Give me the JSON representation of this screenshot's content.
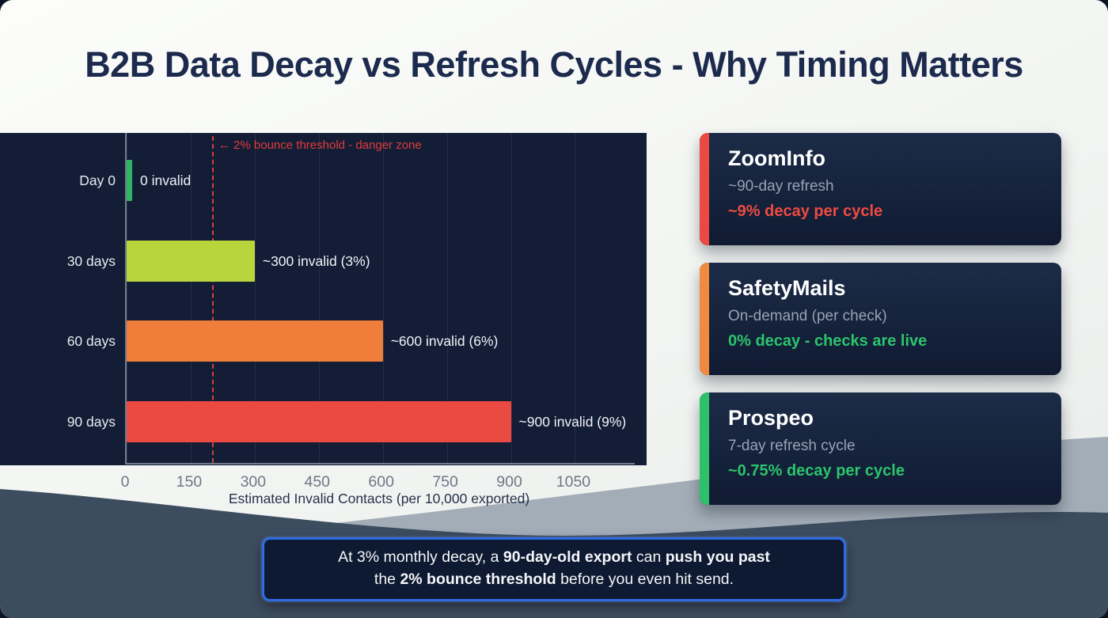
{
  "page": {
    "title": "B2B Data Decay vs Refresh Cycles - Why Timing Matters"
  },
  "chart_data": {
    "type": "bar",
    "orientation": "horizontal",
    "title": "",
    "xlabel": "Estimated Invalid Contacts (per 10,000 exported)",
    "categories": [
      "Day 0",
      "30 days",
      "60 days",
      "90 days"
    ],
    "values": [
      0,
      300,
      600,
      900
    ],
    "bar_labels": [
      "0 invalid",
      "~300 invalid (3%)",
      "~600 invalid (6%)",
      "~900 invalid (9%)"
    ],
    "bar_colors": [
      "#2eb563",
      "#b9d53b",
      "#f07e3a",
      "#ea4a41"
    ],
    "x_ticks": [
      0,
      150,
      300,
      450,
      600,
      750,
      900,
      1050
    ],
    "xlim": [
      0,
      1190
    ],
    "grid": true,
    "legend": false,
    "panel_background": "#131d36",
    "threshold": {
      "value": 200,
      "label": "← 2% bounce threshold - danger zone",
      "color": "#e23b3b"
    }
  },
  "cards": [
    {
      "name": "ZoomInfo",
      "refresh": "~90-day refresh",
      "decay": "~9% decay per cycle",
      "accent_color": "#ea4a41",
      "decay_color": "#ef4b42"
    },
    {
      "name": "SafetyMails",
      "refresh": "On-demand (per check)",
      "decay": "0% decay - checks are live",
      "accent_color": "#f08a3e",
      "decay_color": "#2bc46c"
    },
    {
      "name": "Prospeo",
      "refresh": "7-day refresh cycle",
      "decay": "~0.75% decay per cycle",
      "accent_color": "#2ec06a",
      "decay_color": "#2bc46c"
    }
  ],
  "callout": {
    "lines": [
      [
        {
          "t": "At 3% monthly decay, a "
        },
        {
          "t": "90-day-old export",
          "b": true
        },
        {
          "t": " can "
        },
        {
          "t": "push you past",
          "b": true
        }
      ],
      [
        {
          "t": "the "
        },
        {
          "t": "2% bounce threshold",
          "b": true
        },
        {
          "t": " before you even hit send."
        }
      ]
    ]
  }
}
